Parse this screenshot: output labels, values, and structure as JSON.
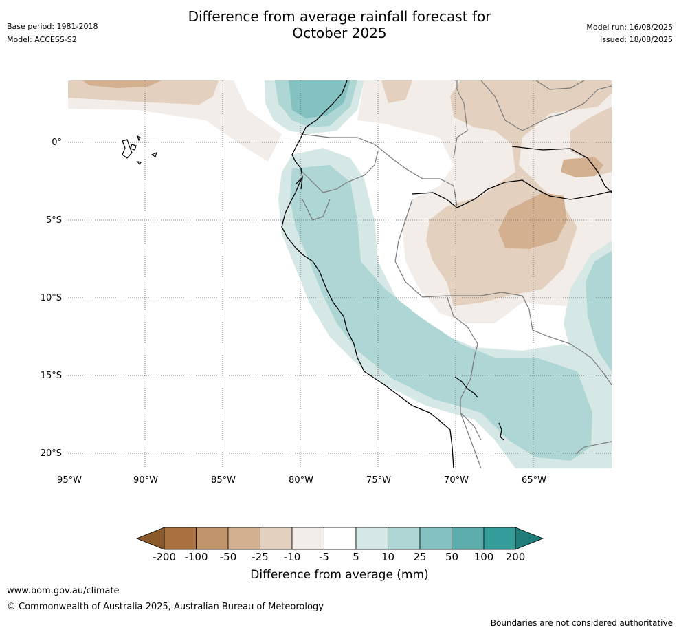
{
  "header": {
    "title_line1": "Difference from average rainfall forecast for",
    "title_line2": "October 2025",
    "base_period": "Base period: 1981-2018",
    "model": "Model: ACCESS-S2",
    "model_run": "Model run: 16/08/2025",
    "issued": "Issued: 18/08/2025"
  },
  "map": {
    "lat_labels": [
      "0°",
      "5°S",
      "10°S",
      "15°S",
      "20°S"
    ],
    "lon_labels": [
      "95°W",
      "90°W",
      "85°W",
      "80°W",
      "75°W",
      "70°W",
      "65°W"
    ],
    "colors": {
      "dry_200": "#8a5a2b",
      "dry_100": "#a8713d",
      "dry_50": "#c1946a",
      "dry_25": "#d3b090",
      "dry_10": "#e3d0bf",
      "dry_5": "#f2ede8",
      "neutral": "#ffffff",
      "wet_5": "#d5e8e6",
      "wet_10": "#add6d5",
      "wet_25": "#84c2c1",
      "wet_50": "#5caeac",
      "wet_100": "#349c99",
      "wet_200": "#1f7d7a"
    }
  },
  "colorbar": {
    "labels": [
      "-200",
      "-100",
      "-50",
      "-25",
      "-10",
      "-5",
      "5",
      "10",
      "25",
      "50",
      "100",
      "200"
    ],
    "title": "Difference from average (mm)"
  },
  "footer": {
    "website": "www.bom.gov.au/climate",
    "copyright": "© Commonwealth of Australia 2025, Australian Bureau of Meteorology",
    "disclaimer": "Boundaries are not considered authoritative"
  }
}
